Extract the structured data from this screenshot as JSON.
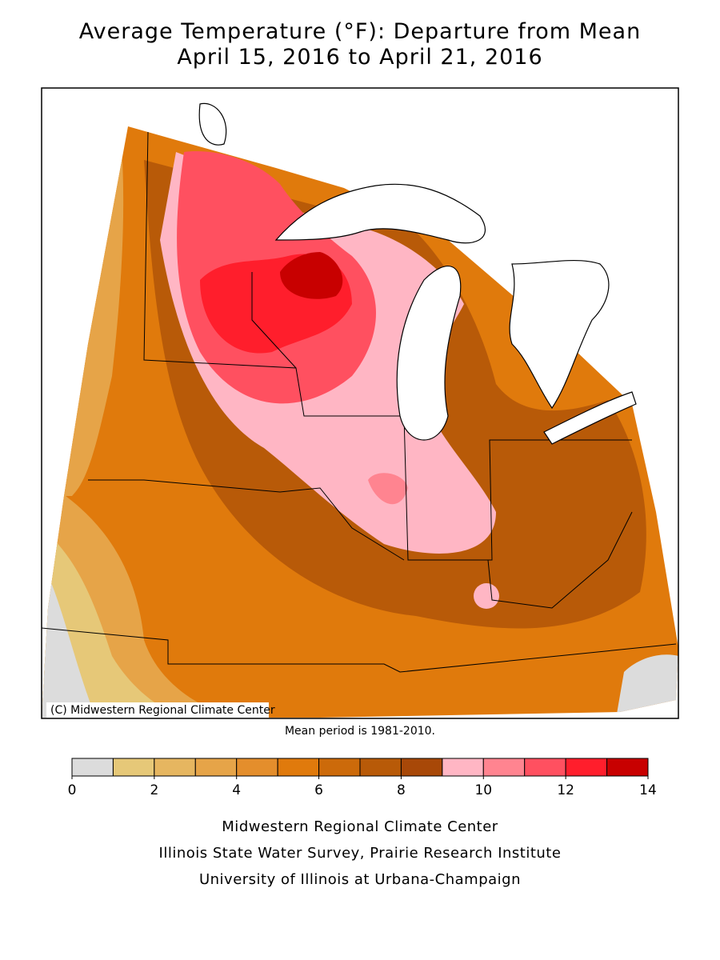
{
  "header": {
    "title": "Average Temperature (°F): Departure from Mean",
    "subtitle": "April 15, 2016 to April 21, 2016"
  },
  "map": {
    "credit": "(C) Midwestern Regional Climate Center",
    "note": "Mean period is 1981-2010."
  },
  "legend": {
    "bins": [
      0,
      1,
      2,
      3,
      4,
      5,
      6,
      7,
      8,
      9,
      10,
      11,
      12,
      13,
      14
    ],
    "colors": [
      "#dcdcdc",
      "#e6c878",
      "#e6b660",
      "#e6a448",
      "#e48e2c",
      "#e07a0c",
      "#cc6a0a",
      "#b85a08",
      "#a84808",
      "#ffb6c4",
      "#ff8490",
      "#ff5060",
      "#ff1e2c",
      "#c80000"
    ],
    "ticks": [
      0,
      2,
      4,
      6,
      8,
      10,
      12,
      14
    ]
  },
  "footer": {
    "lines": [
      "Midwestern Regional Climate Center",
      "Illinois State Water Survey, Prairie Research Institute",
      "University of Illinois at Urbana-Champaign"
    ]
  }
}
